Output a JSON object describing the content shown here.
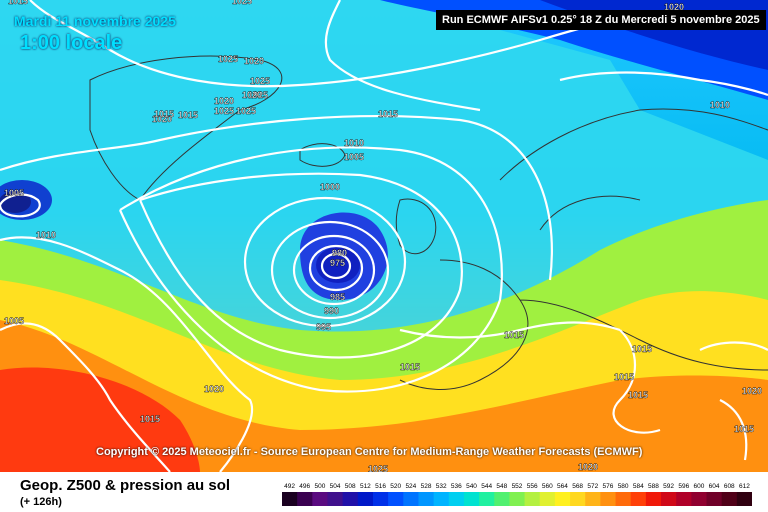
{
  "header": {
    "date": "Mardi 11 novembre 2025",
    "local_time": "1:00 locale",
    "run": "Run ECMWF AIFSv1 0.25° 18 Z du Mercredi 5 novembre 2025"
  },
  "copyright": "Copyright © 2025 Meteociel.fr - Source European Centre for Medium-Range Weather Forecasts (ECMWF)",
  "footer": {
    "title": "Geop. Z500 & pression au sol",
    "lead_time": "(+ 126h)"
  },
  "scale": {
    "labels": [
      "492",
      "496",
      "500",
      "504",
      "508",
      "512",
      "516",
      "520",
      "524",
      "528",
      "532",
      "536",
      "540",
      "544",
      "548",
      "552",
      "556",
      "560",
      "564",
      "568",
      "572",
      "576",
      "580",
      "584",
      "588",
      "592",
      "596",
      "600",
      "604",
      "608",
      "612"
    ],
    "colors": [
      "#1a0020",
      "#3a0050",
      "#5a0a80",
      "#40108c",
      "#2010a8",
      "#0018c8",
      "#0030e8",
      "#0050ff",
      "#0074ff",
      "#0096ff",
      "#00b4ff",
      "#00cff0",
      "#00e2d0",
      "#20f0a0",
      "#50f070",
      "#80f050",
      "#b4f040",
      "#e0f030",
      "#fff020",
      "#ffd820",
      "#ffb418",
      "#ff9010",
      "#ff6a0a",
      "#ff4008",
      "#f01808",
      "#d00818",
      "#b00028",
      "#900030",
      "#700028",
      "#500018",
      "#300010"
    ]
  },
  "isobars": [
    {
      "text": "1015"
    },
    {
      "text": "1025"
    },
    {
      "text": "1025"
    },
    {
      "text": "1025"
    },
    {
      "text": "1025"
    },
    {
      "text": "1020"
    },
    {
      "text": "1020"
    },
    {
      "text": "1020"
    },
    {
      "text": "1015"
    },
    {
      "text": "1025"
    },
    {
      "text": "1025"
    },
    {
      "text": "1020"
    },
    {
      "text": "1015"
    },
    {
      "text": "1010"
    },
    {
      "text": "1005"
    },
    {
      "text": "1000"
    },
    {
      "text": "1010"
    },
    {
      "text": "1005"
    },
    {
      "text": "1010"
    },
    {
      "text": "1005"
    },
    {
      "text": "980"
    },
    {
      "text": "975"
    },
    {
      "text": "985"
    },
    {
      "text": "990"
    },
    {
      "text": "995"
    },
    {
      "text": "1015"
    },
    {
      "text": "1015"
    },
    {
      "text": "1015"
    },
    {
      "text": "1015"
    },
    {
      "text": "1015"
    },
    {
      "text": "1015"
    },
    {
      "text": "1020"
    },
    {
      "text": "1015"
    },
    {
      "text": "1015"
    },
    {
      "text": "1020"
    },
    {
      "text": "1020"
    },
    {
      "text": "1025"
    },
    {
      "text": "1020"
    }
  ]
}
